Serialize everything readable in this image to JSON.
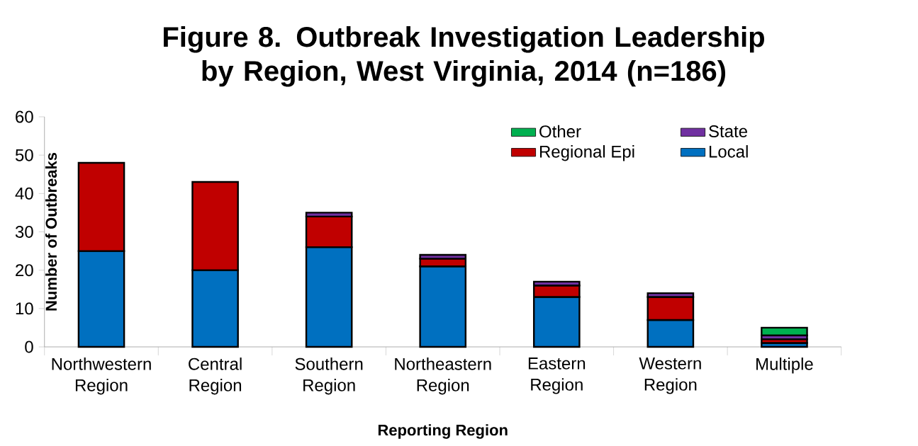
{
  "chart_data": {
    "type": "bar",
    "title": "Figure 8. Outbreak Investigation Leadership by Region, West Virginia, 2014 (n=186)",
    "xlabel": "Reporting Region",
    "ylabel": "Number of Outbreaks",
    "categories": [
      "Northwestern Region",
      "Central Region",
      "Southern Region",
      "Northeastern Region",
      "Eastern Region",
      "Western Region",
      "Multiple"
    ],
    "stacked": true,
    "series": [
      {
        "name": "Local",
        "color": "#0070c0",
        "values": [
          25,
          20,
          26,
          21,
          13,
          7,
          1
        ]
      },
      {
        "name": "Regional Epi",
        "color": "#c00000",
        "values": [
          23,
          23,
          8,
          2,
          3,
          6,
          1
        ]
      },
      {
        "name": "State",
        "color": "#7030a0",
        "values": [
          null,
          null,
          1,
          1,
          1,
          1,
          1
        ]
      },
      {
        "name": "Other",
        "color": "#00b050",
        "values": [
          null,
          null,
          null,
          null,
          null,
          null,
          2
        ]
      }
    ],
    "ylim": [
      0,
      60
    ],
    "yticks": [
      0,
      10,
      20,
      30,
      40,
      50,
      60
    ],
    "grid": false,
    "legend": "top right"
  }
}
